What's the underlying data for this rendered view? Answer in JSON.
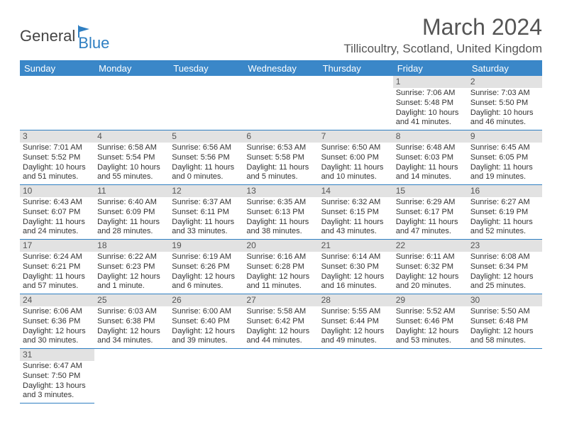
{
  "logo": {
    "general": "General",
    "blue": "Blue"
  },
  "title": "March 2024",
  "location": "Tillicoultry, Scotland, United Kingdom",
  "colors": {
    "header_bg": "#3a87c8",
    "rule": "#2f7fc2",
    "daynum_bg": "#e2e2e2",
    "text": "#333333",
    "logo_blue": "#2f7fc2"
  },
  "day_names": [
    "Sunday",
    "Monday",
    "Tuesday",
    "Wednesday",
    "Thursday",
    "Friday",
    "Saturday"
  ],
  "weeks": [
    [
      null,
      null,
      null,
      null,
      null,
      {
        "n": "1",
        "sr": "Sunrise: 7:06 AM",
        "ss": "Sunset: 5:48 PM",
        "dl": "Daylight: 10 hours and 41 minutes."
      },
      {
        "n": "2",
        "sr": "Sunrise: 7:03 AM",
        "ss": "Sunset: 5:50 PM",
        "dl": "Daylight: 10 hours and 46 minutes."
      }
    ],
    [
      {
        "n": "3",
        "sr": "Sunrise: 7:01 AM",
        "ss": "Sunset: 5:52 PM",
        "dl": "Daylight: 10 hours and 51 minutes."
      },
      {
        "n": "4",
        "sr": "Sunrise: 6:58 AM",
        "ss": "Sunset: 5:54 PM",
        "dl": "Daylight: 10 hours and 55 minutes."
      },
      {
        "n": "5",
        "sr": "Sunrise: 6:56 AM",
        "ss": "Sunset: 5:56 PM",
        "dl": "Daylight: 11 hours and 0 minutes."
      },
      {
        "n": "6",
        "sr": "Sunrise: 6:53 AM",
        "ss": "Sunset: 5:58 PM",
        "dl": "Daylight: 11 hours and 5 minutes."
      },
      {
        "n": "7",
        "sr": "Sunrise: 6:50 AM",
        "ss": "Sunset: 6:00 PM",
        "dl": "Daylight: 11 hours and 10 minutes."
      },
      {
        "n": "8",
        "sr": "Sunrise: 6:48 AM",
        "ss": "Sunset: 6:03 PM",
        "dl": "Daylight: 11 hours and 14 minutes."
      },
      {
        "n": "9",
        "sr": "Sunrise: 6:45 AM",
        "ss": "Sunset: 6:05 PM",
        "dl": "Daylight: 11 hours and 19 minutes."
      }
    ],
    [
      {
        "n": "10",
        "sr": "Sunrise: 6:43 AM",
        "ss": "Sunset: 6:07 PM",
        "dl": "Daylight: 11 hours and 24 minutes."
      },
      {
        "n": "11",
        "sr": "Sunrise: 6:40 AM",
        "ss": "Sunset: 6:09 PM",
        "dl": "Daylight: 11 hours and 28 minutes."
      },
      {
        "n": "12",
        "sr": "Sunrise: 6:37 AM",
        "ss": "Sunset: 6:11 PM",
        "dl": "Daylight: 11 hours and 33 minutes."
      },
      {
        "n": "13",
        "sr": "Sunrise: 6:35 AM",
        "ss": "Sunset: 6:13 PM",
        "dl": "Daylight: 11 hours and 38 minutes."
      },
      {
        "n": "14",
        "sr": "Sunrise: 6:32 AM",
        "ss": "Sunset: 6:15 PM",
        "dl": "Daylight: 11 hours and 43 minutes."
      },
      {
        "n": "15",
        "sr": "Sunrise: 6:29 AM",
        "ss": "Sunset: 6:17 PM",
        "dl": "Daylight: 11 hours and 47 minutes."
      },
      {
        "n": "16",
        "sr": "Sunrise: 6:27 AM",
        "ss": "Sunset: 6:19 PM",
        "dl": "Daylight: 11 hours and 52 minutes."
      }
    ],
    [
      {
        "n": "17",
        "sr": "Sunrise: 6:24 AM",
        "ss": "Sunset: 6:21 PM",
        "dl": "Daylight: 11 hours and 57 minutes."
      },
      {
        "n": "18",
        "sr": "Sunrise: 6:22 AM",
        "ss": "Sunset: 6:23 PM",
        "dl": "Daylight: 12 hours and 1 minute."
      },
      {
        "n": "19",
        "sr": "Sunrise: 6:19 AM",
        "ss": "Sunset: 6:26 PM",
        "dl": "Daylight: 12 hours and 6 minutes."
      },
      {
        "n": "20",
        "sr": "Sunrise: 6:16 AM",
        "ss": "Sunset: 6:28 PM",
        "dl": "Daylight: 12 hours and 11 minutes."
      },
      {
        "n": "21",
        "sr": "Sunrise: 6:14 AM",
        "ss": "Sunset: 6:30 PM",
        "dl": "Daylight: 12 hours and 16 minutes."
      },
      {
        "n": "22",
        "sr": "Sunrise: 6:11 AM",
        "ss": "Sunset: 6:32 PM",
        "dl": "Daylight: 12 hours and 20 minutes."
      },
      {
        "n": "23",
        "sr": "Sunrise: 6:08 AM",
        "ss": "Sunset: 6:34 PM",
        "dl": "Daylight: 12 hours and 25 minutes."
      }
    ],
    [
      {
        "n": "24",
        "sr": "Sunrise: 6:06 AM",
        "ss": "Sunset: 6:36 PM",
        "dl": "Daylight: 12 hours and 30 minutes."
      },
      {
        "n": "25",
        "sr": "Sunrise: 6:03 AM",
        "ss": "Sunset: 6:38 PM",
        "dl": "Daylight: 12 hours and 34 minutes."
      },
      {
        "n": "26",
        "sr": "Sunrise: 6:00 AM",
        "ss": "Sunset: 6:40 PM",
        "dl": "Daylight: 12 hours and 39 minutes."
      },
      {
        "n": "27",
        "sr": "Sunrise: 5:58 AM",
        "ss": "Sunset: 6:42 PM",
        "dl": "Daylight: 12 hours and 44 minutes."
      },
      {
        "n": "28",
        "sr": "Sunrise: 5:55 AM",
        "ss": "Sunset: 6:44 PM",
        "dl": "Daylight: 12 hours and 49 minutes."
      },
      {
        "n": "29",
        "sr": "Sunrise: 5:52 AM",
        "ss": "Sunset: 6:46 PM",
        "dl": "Daylight: 12 hours and 53 minutes."
      },
      {
        "n": "30",
        "sr": "Sunrise: 5:50 AM",
        "ss": "Sunset: 6:48 PM",
        "dl": "Daylight: 12 hours and 58 minutes."
      }
    ],
    [
      {
        "n": "31",
        "sr": "Sunrise: 6:47 AM",
        "ss": "Sunset: 7:50 PM",
        "dl": "Daylight: 13 hours and 3 minutes."
      },
      null,
      null,
      null,
      null,
      null,
      null
    ]
  ]
}
